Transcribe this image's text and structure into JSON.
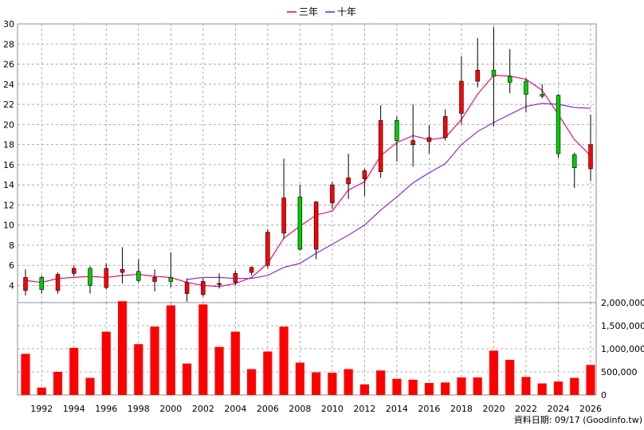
{
  "chart_data": [
    {
      "type": "candlestick",
      "legend": [
        {
          "name": "三年",
          "color": "#e0006a"
        },
        {
          "name": "十年",
          "color": "#7a1fd6"
        }
      ],
      "ylim": [
        2.3,
        30
      ],
      "yticks": [
        4,
        6,
        8,
        10,
        12,
        14,
        16,
        18,
        20,
        22,
        24,
        26,
        28,
        30
      ],
      "xticks": [
        "1992",
        "1994",
        "1996",
        "1998",
        "2000",
        "2002",
        "2004",
        "2006",
        "2008",
        "2010",
        "2012",
        "2014",
        "2016",
        "2018",
        "2020",
        "2022",
        "2024",
        "2026"
      ],
      "grid": true,
      "up_color": "#ff0000",
      "down_color": "#00cc00",
      "candles": [
        {
          "year": 1991,
          "open": 3.5,
          "close": 4.8,
          "high": 5.6,
          "low": 3.0
        },
        {
          "year": 1992,
          "open": 4.8,
          "close": 3.6,
          "high": 5.0,
          "low": 3.2
        },
        {
          "year": 1993,
          "open": 3.5,
          "close": 5.1,
          "high": 5.3,
          "low": 3.2
        },
        {
          "year": 1994,
          "open": 5.2,
          "close": 5.7,
          "high": 6.0,
          "low": 4.9
        },
        {
          "year": 1995,
          "open": 5.7,
          "close": 4.0,
          "high": 5.9,
          "low": 3.2
        },
        {
          "year": 1996,
          "open": 3.8,
          "close": 5.7,
          "high": 6.2,
          "low": 3.6
        },
        {
          "year": 1997,
          "open": 5.3,
          "close": 5.6,
          "high": 7.8,
          "low": 4.2
        },
        {
          "year": 1998,
          "open": 5.4,
          "close": 4.5,
          "high": 6.6,
          "low": 4.3
        },
        {
          "year": 1999,
          "open": 4.4,
          "close": 4.8,
          "high": 5.6,
          "low": 3.4
        },
        {
          "year": 2000,
          "open": 4.8,
          "close": 4.4,
          "high": 7.3,
          "low": 3.8
        },
        {
          "year": 2001,
          "open": 3.2,
          "close": 4.3,
          "high": 4.7,
          "low": 2.4
        },
        {
          "year": 2002,
          "open": 3.1,
          "close": 4.4,
          "high": 4.7,
          "low": 2.9
        },
        {
          "year": 2003,
          "open": 4.2,
          "close": 4.2,
          "high": 5.2,
          "low": 3.7
        },
        {
          "year": 2004,
          "open": 4.3,
          "close": 5.2,
          "high": 5.5,
          "low": 4.0
        },
        {
          "year": 2005,
          "open": 5.3,
          "close": 5.8,
          "high": 5.9,
          "low": 5.0
        },
        {
          "year": 2006,
          "open": 6.0,
          "close": 9.3,
          "high": 9.6,
          "low": 5.7
        },
        {
          "year": 2007,
          "open": 9.2,
          "close": 12.7,
          "high": 16.6,
          "low": 8.6
        },
        {
          "year": 2008,
          "open": 12.8,
          "close": 7.6,
          "high": 14.0,
          "low": 7.5
        },
        {
          "year": 2009,
          "open": 7.6,
          "close": 12.3,
          "high": 12.4,
          "low": 6.6
        },
        {
          "year": 2010,
          "open": 12.2,
          "close": 14.0,
          "high": 14.3,
          "low": 11.6
        },
        {
          "year": 2011,
          "open": 14.1,
          "close": 14.7,
          "high": 17.1,
          "low": 12.6
        },
        {
          "year": 2012,
          "open": 14.6,
          "close": 15.4,
          "high": 15.6,
          "low": 12.9
        },
        {
          "year": 2013,
          "open": 15.3,
          "close": 20.4,
          "high": 21.9,
          "low": 14.7
        },
        {
          "year": 2014,
          "open": 20.4,
          "close": 18.4,
          "high": 20.8,
          "low": 16.3
        },
        {
          "year": 2015,
          "open": 18.0,
          "close": 18.4,
          "high": 22.0,
          "low": 15.8
        },
        {
          "year": 2016,
          "open": 18.3,
          "close": 18.7,
          "high": 19.9,
          "low": 17.1
        },
        {
          "year": 2017,
          "open": 18.7,
          "close": 20.8,
          "high": 21.5,
          "low": 18.4
        },
        {
          "year": 2018,
          "open": 21.1,
          "close": 24.3,
          "high": 26.8,
          "low": 20.0
        },
        {
          "year": 2019,
          "open": 24.3,
          "close": 25.4,
          "high": 28.6,
          "low": 23.7
        },
        {
          "year": 2020,
          "open": 25.4,
          "close": 24.8,
          "high": 29.7,
          "low": 19.8
        },
        {
          "year": 2021,
          "open": 24.8,
          "close": 24.2,
          "high": 27.5,
          "low": 23.1
        },
        {
          "year": 2022,
          "open": 24.3,
          "close": 23.0,
          "high": 24.6,
          "low": 21.2
        },
        {
          "year": 2023,
          "open": 23.0,
          "close": 22.8,
          "high": 24.0,
          "low": 22.6
        },
        {
          "year": 2024,
          "open": 22.9,
          "close": 17.1,
          "high": 23.0,
          "low": 16.7
        },
        {
          "year": 2025,
          "open": 17.0,
          "close": 15.7,
          "high": 17.2,
          "low": 13.7
        },
        {
          "year": 2026,
          "open": 15.6,
          "close": 18.0,
          "high": 21.0,
          "low": 14.4
        }
      ],
      "series": [
        {
          "name": "三年",
          "color": "#e0006a",
          "values": [
            4.5,
            4.3,
            4.7,
            4.8,
            4.9,
            4.8,
            5.0,
            5.1,
            4.9,
            4.8,
            4.3,
            4.0,
            3.9,
            4.2,
            4.8,
            6.2,
            8.7,
            9.9,
            11.0,
            11.4,
            13.5,
            14.3,
            16.9,
            18.2,
            18.9,
            18.5,
            18.7,
            20.5,
            23.0,
            24.9,
            24.8,
            24.5,
            23.4,
            21.0,
            18.5,
            16.9
          ]
        },
        {
          "name": "十年",
          "color": "#7a1fd6",
          "values": [
            null,
            null,
            null,
            null,
            null,
            null,
            null,
            null,
            null,
            null,
            4.6,
            4.8,
            4.8,
            4.7,
            4.7,
            5.0,
            5.8,
            6.2,
            7.2,
            8.1,
            9.0,
            10.0,
            11.5,
            12.8,
            14.2,
            15.2,
            16.1,
            18.0,
            19.3,
            20.2,
            21.0,
            21.8,
            22.1,
            22.0,
            21.7,
            21.6
          ]
        }
      ]
    },
    {
      "type": "bar",
      "color": "#ff0000",
      "ylim": [
        0,
        2000000
      ],
      "yticks": [
        "0",
        "500,000",
        "1,000,000",
        "1,500,000",
        "2,000,000"
      ],
      "ytick_values": [
        0,
        500000,
        1000000,
        1500000,
        2000000
      ],
      "years": [
        1991,
        1992,
        1993,
        1994,
        1995,
        1996,
        1997,
        1998,
        1999,
        2000,
        2001,
        2002,
        2003,
        2004,
        2005,
        2006,
        2007,
        2008,
        2009,
        2010,
        2011,
        2012,
        2013,
        2014,
        2015,
        2016,
        2017,
        2018,
        2019,
        2020,
        2021,
        2022,
        2023,
        2024,
        2025,
        2026
      ],
      "values": [
        890000,
        160000,
        500000,
        1020000,
        370000,
        1370000,
        2030000,
        1100000,
        1480000,
        1940000,
        680000,
        1960000,
        1040000,
        1370000,
        560000,
        940000,
        1480000,
        700000,
        490000,
        480000,
        560000,
        230000,
        530000,
        350000,
        330000,
        260000,
        270000,
        380000,
        380000,
        960000,
        760000,
        390000,
        250000,
        290000,
        370000,
        650000
      ]
    }
  ],
  "footer": "資料日期: 09/17 (Goodinfo.tw)"
}
